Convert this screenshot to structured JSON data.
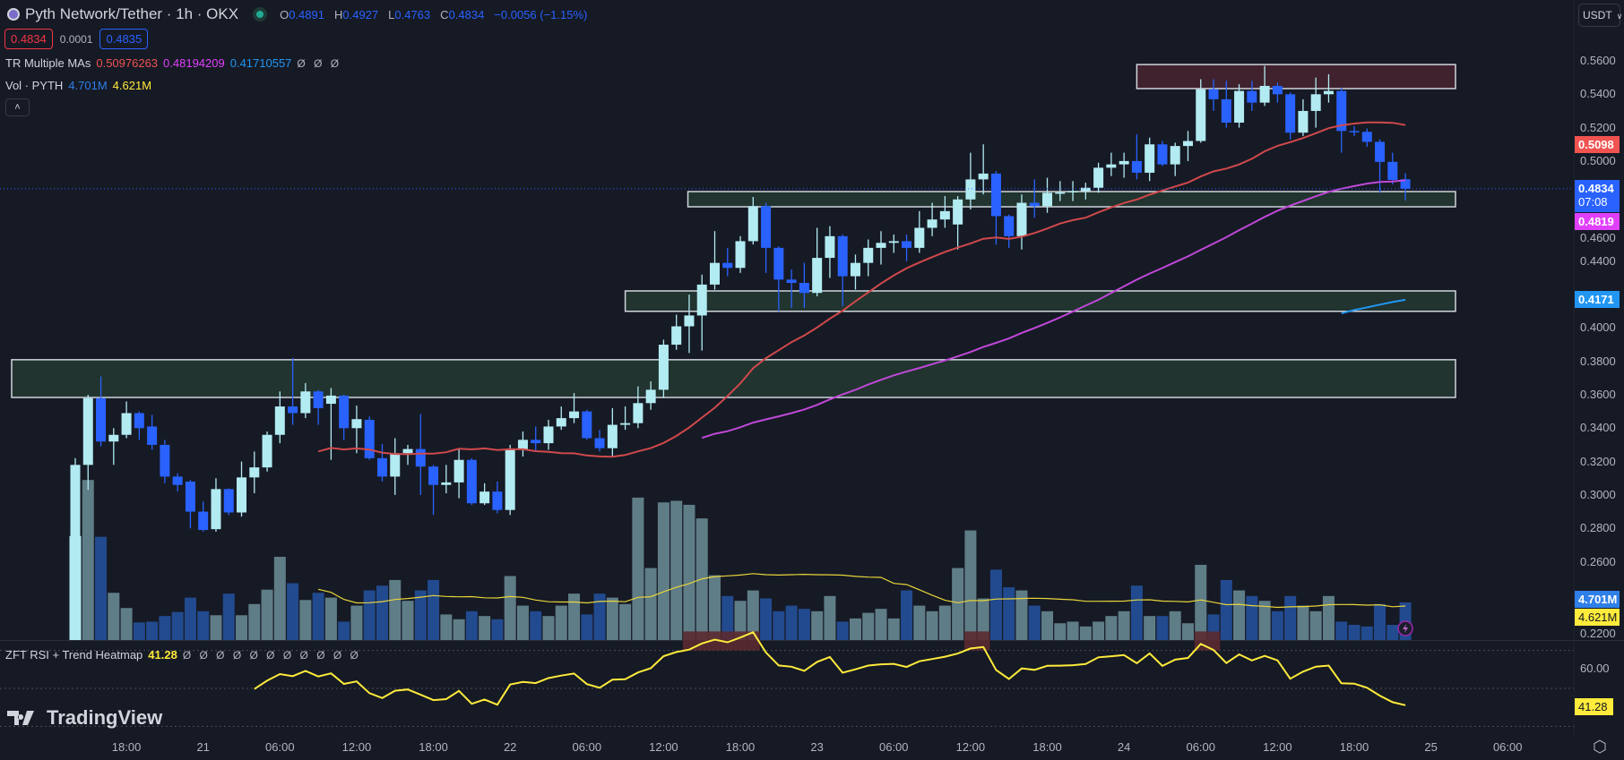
{
  "header": {
    "symbol_title": "Pyth Network/Tether · 1h · OKX",
    "ohlc": [
      {
        "label": "O",
        "value": "0.4891"
      },
      {
        "label": "H",
        "value": "0.4927"
      },
      {
        "label": "L",
        "value": "0.4763"
      },
      {
        "label": "C",
        "value": "0.4834"
      }
    ],
    "change": "−0.0056 (−1.15%)",
    "sell_price": "0.4834",
    "spread": "0.0001",
    "buy_price": "0.4835",
    "currency": "USDT"
  },
  "indicators": {
    "ma_name": "TR Multiple MAs",
    "ma_values": [
      "0.50976263",
      "0.48194209",
      "0.41710557"
    ],
    "ma_nulls": "Ø Ø Ø",
    "vol_name": "Vol · PYTH",
    "vol_value": "4.701M",
    "vol_ma_value": "4.621M",
    "rsi_name": "ZFT RSI + Trend Heatmap",
    "rsi_value": "41.28",
    "rsi_nulls": "Ø Ø Ø Ø Ø Ø Ø Ø Ø Ø Ø"
  },
  "colors": {
    "up": "#b2ebf2",
    "down": "#2962ff",
    "vol_up": "#5f7d87",
    "vol_down": "#224a8f",
    "ma20": "#d0494b",
    "ma50": "#c048d8",
    "ma100": "#2196f3",
    "vol_ma": "#e8d43a",
    "rsi": "#ffeb3b"
  },
  "price_axis": {
    "labels": [
      "0.5600",
      "0.5400",
      "0.5200",
      "0.5000",
      "0.4600",
      "0.4400",
      "0.4000",
      "0.3800",
      "0.3600",
      "0.3400",
      "0.3200",
      "0.3000",
      "0.2800",
      "0.2600",
      "0.2200"
    ],
    "badges": {
      "ma20": "0.5098",
      "last": "0.4834",
      "countdown": "07:08",
      "ma50": "0.4819",
      "ma100": "0.4171",
      "vol": "4.701M",
      "vol_ma": "4.621M",
      "rsi_level": "60.00",
      "rsi": "41.28"
    }
  },
  "time_axis": {
    "labels": [
      "18:00",
      "21",
      "06:00",
      "12:00",
      "18:00",
      "22",
      "06:00",
      "12:00",
      "18:00",
      "23",
      "06:00",
      "12:00",
      "18:00",
      "24",
      "06:00",
      "12:00",
      "18:00",
      "25",
      "06:00"
    ]
  },
  "branding": "TradingView",
  "chart_data": {
    "type": "candlestick",
    "interval": "1h",
    "ylim": [
      0.22,
      0.56
    ],
    "candles_ohlc": [
      [
        0.265,
        0.322,
        0.262,
        0.318
      ],
      [
        0.318,
        0.36,
        0.303,
        0.358
      ],
      [
        0.358,
        0.371,
        0.329,
        0.332
      ],
      [
        0.332,
        0.34,
        0.318,
        0.336
      ],
      [
        0.336,
        0.356,
        0.334,
        0.349
      ],
      [
        0.349,
        0.35,
        0.333,
        0.34
      ],
      [
        0.341,
        0.348,
        0.327,
        0.33
      ],
      [
        0.33,
        0.333,
        0.307,
        0.311
      ],
      [
        0.311,
        0.313,
        0.302,
        0.306
      ],
      [
        0.308,
        0.309,
        0.28,
        0.29
      ],
      [
        0.29,
        0.296,
        0.278,
        0.279
      ],
      [
        0.2795,
        0.31,
        0.278,
        0.3035
      ],
      [
        0.3035,
        0.304,
        0.288,
        0.2895
      ],
      [
        0.2895,
        0.32,
        0.287,
        0.3105
      ],
      [
        0.3105,
        0.326,
        0.301,
        0.3165
      ],
      [
        0.3165,
        0.338,
        0.314,
        0.336
      ],
      [
        0.336,
        0.362,
        0.331,
        0.353
      ],
      [
        0.353,
        0.382,
        0.342,
        0.349
      ],
      [
        0.349,
        0.367,
        0.346,
        0.362
      ],
      [
        0.362,
        0.363,
        0.342,
        0.352
      ],
      [
        0.3546,
        0.364,
        0.321,
        0.3595
      ],
      [
        0.3595,
        0.36,
        0.333,
        0.34
      ],
      [
        0.34,
        0.3535,
        0.325,
        0.3454
      ],
      [
        0.345,
        0.347,
        0.321,
        0.322
      ],
      [
        0.322,
        0.3305,
        0.308,
        0.311
      ],
      [
        0.311,
        0.334,
        0.3,
        0.325
      ],
      [
        0.325,
        0.33,
        0.318,
        0.3275
      ],
      [
        0.3275,
        0.3485,
        0.3,
        0.317
      ],
      [
        0.317,
        0.318,
        0.288,
        0.306
      ],
      [
        0.306,
        0.318,
        0.301,
        0.3075
      ],
      [
        0.3075,
        0.328,
        0.298,
        0.321
      ],
      [
        0.321,
        0.322,
        0.294,
        0.295
      ],
      [
        0.295,
        0.307,
        0.294,
        0.302
      ],
      [
        0.302,
        0.308,
        0.289,
        0.291
      ],
      [
        0.291,
        0.33,
        0.288,
        0.3275
      ],
      [
        0.327,
        0.338,
        0.323,
        0.333
      ],
      [
        0.333,
        0.341,
        0.326,
        0.331
      ],
      [
        0.331,
        0.345,
        0.327,
        0.341
      ],
      [
        0.341,
        0.353,
        0.339,
        0.346
      ],
      [
        0.346,
        0.361,
        0.343,
        0.35
      ],
      [
        0.35,
        0.351,
        0.333,
        0.334
      ],
      [
        0.334,
        0.339,
        0.326,
        0.328
      ],
      [
        0.328,
        0.352,
        0.323,
        0.342
      ],
      [
        0.342,
        0.353,
        0.339,
        0.343
      ],
      [
        0.343,
        0.365,
        0.34,
        0.355
      ],
      [
        0.355,
        0.368,
        0.351,
        0.363
      ],
      [
        0.363,
        0.393,
        0.358,
        0.39
      ],
      [
        0.39,
        0.408,
        0.387,
        0.401
      ],
      [
        0.401,
        0.42,
        0.385,
        0.4075
      ],
      [
        0.4075,
        0.432,
        0.3865,
        0.426
      ],
      [
        0.426,
        0.458,
        0.423,
        0.439
      ],
      [
        0.439,
        0.448,
        0.431,
        0.436
      ],
      [
        0.436,
        0.455,
        0.433,
        0.452
      ],
      [
        0.452,
        0.4785,
        0.45,
        0.473
      ],
      [
        0.473,
        0.475,
        0.433,
        0.448
      ],
      [
        0.448,
        0.449,
        0.41,
        0.429
      ],
      [
        0.429,
        0.435,
        0.412,
        0.427
      ],
      [
        0.427,
        0.439,
        0.412,
        0.421
      ],
      [
        0.421,
        0.46,
        0.419,
        0.442
      ],
      [
        0.442,
        0.461,
        0.43,
        0.455
      ],
      [
        0.455,
        0.456,
        0.413,
        0.431
      ],
      [
        0.431,
        0.444,
        0.423,
        0.439
      ],
      [
        0.439,
        0.453,
        0.431,
        0.448
      ],
      [
        0.448,
        0.458,
        0.438,
        0.451
      ],
      [
        0.451,
        0.456,
        0.445,
        0.452
      ],
      [
        0.452,
        0.456,
        0.44,
        0.448
      ],
      [
        0.448,
        0.47,
        0.445,
        0.46
      ],
      [
        0.46,
        0.475,
        0.455,
        0.465
      ],
      [
        0.465,
        0.479,
        0.46,
        0.47
      ],
      [
        0.462,
        0.479,
        0.447,
        0.477
      ],
      [
        0.477,
        0.505,
        0.471,
        0.489
      ],
      [
        0.489,
        0.51,
        0.48,
        0.4925
      ],
      [
        0.4925,
        0.494,
        0.45,
        0.467
      ],
      [
        0.467,
        0.468,
        0.448,
        0.455
      ],
      [
        0.455,
        0.48,
        0.447,
        0.475
      ],
      [
        0.475,
        0.489,
        0.466,
        0.473
      ],
      [
        0.473,
        0.49,
        0.469,
        0.481
      ],
      [
        0.481,
        0.488,
        0.476,
        0.4812
      ],
      [
        0.4812,
        0.488,
        0.476,
        0.482
      ],
      [
        0.482,
        0.487,
        0.477,
        0.484
      ],
      [
        0.484,
        0.499,
        0.481,
        0.496
      ],
      [
        0.496,
        0.505,
        0.491,
        0.498
      ],
      [
        0.498,
        0.505,
        0.49,
        0.5
      ],
      [
        0.5,
        0.516,
        0.489,
        0.493
      ],
      [
        0.493,
        0.514,
        0.488,
        0.51
      ],
      [
        0.51,
        0.512,
        0.497,
        0.498
      ],
      [
        0.498,
        0.511,
        0.491,
        0.509
      ],
      [
        0.509,
        0.518,
        0.5,
        0.512
      ],
      [
        0.512,
        0.549,
        0.511,
        0.543
      ],
      [
        0.543,
        0.549,
        0.53,
        0.537
      ],
      [
        0.537,
        0.548,
        0.52,
        0.523
      ],
      [
        0.523,
        0.546,
        0.52,
        0.542
      ],
      [
        0.542,
        0.548,
        0.53,
        0.535
      ],
      [
        0.535,
        0.557,
        0.533,
        0.545
      ],
      [
        0.545,
        0.547,
        0.535,
        0.54
      ],
      [
        0.54,
        0.541,
        0.513,
        0.517
      ],
      [
        0.517,
        0.537,
        0.515,
        0.53
      ],
      [
        0.53,
        0.55,
        0.52,
        0.54
      ],
      [
        0.54,
        0.552,
        0.535,
        0.542
      ],
      [
        0.542,
        0.544,
        0.505,
        0.518
      ],
      [
        0.518,
        0.521,
        0.515,
        0.5175
      ],
      [
        0.5175,
        0.5195,
        0.5085,
        0.5115
      ],
      [
        0.5115,
        0.513,
        0.481,
        0.4995
      ],
      [
        0.4995,
        0.505,
        0.486,
        0.4887
      ],
      [
        0.4891,
        0.4927,
        0.4763,
        0.4834
      ]
    ],
    "volume_millions": [
      13.0,
      20.0,
      12.9,
      5.9,
      4.0,
      2.2,
      2.3,
      3.0,
      3.5,
      5.3,
      3.6,
      3.1,
      5.8,
      3.1,
      4.5,
      6.3,
      10.4,
      7.1,
      5.0,
      5.9,
      5.3,
      2.3,
      4.3,
      6.2,
      6.8,
      7.5,
      4.9,
      6.2,
      7.5,
      3.2,
      2.6,
      3.6,
      3.0,
      2.6,
      8.0,
      4.3,
      3.6,
      3.0,
      4.3,
      5.8,
      3.2,
      5.8,
      5.3,
      4.5,
      17.8,
      9.0,
      17.2,
      17.4,
      16.9,
      15.2,
      8.1,
      5.5,
      4.9,
      6.2,
      5.2,
      3.6,
      4.3,
      3.9,
      3.6,
      5.5,
      2.3,
      2.7,
      3.4,
      3.9,
      2.7,
      6.2,
      4.3,
      3.6,
      4.3,
      9.0,
      13.7,
      5.2,
      8.8,
      6.6,
      6.2,
      4.3,
      3.6,
      2.1,
      2.3,
      1.7,
      2.3,
      3.0,
      3.6,
      6.8,
      3.0,
      3.0,
      3.6,
      2.1,
      9.4,
      3.2,
      7.5,
      6.2,
      5.5,
      4.9,
      3.6,
      5.5,
      4.3,
      3.6,
      5.5,
      2.3,
      1.9,
      1.7,
      4.5,
      1.9,
      4.701
    ],
    "moving_averages": [
      20,
      50,
      100
    ],
    "volume_ma_period": 20,
    "rsi_period": 14,
    "rsi_levels": [
      70,
      50,
      30
    ],
    "zones": [
      {
        "kind": "supply",
        "low": 0.5434,
        "high": 0.5578
      },
      {
        "kind": "demand",
        "low": 0.4726,
        "high": 0.4817
      },
      {
        "kind": "demand",
        "low": 0.41,
        "high": 0.4222
      },
      {
        "kind": "demand",
        "low": 0.3584,
        "high": 0.381
      }
    ],
    "last_price": 0.4834
  }
}
